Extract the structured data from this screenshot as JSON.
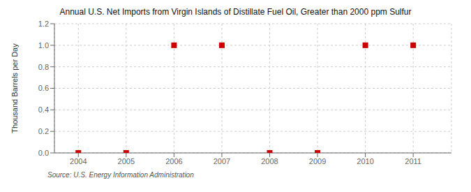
{
  "chart_data": {
    "type": "scatter",
    "title": "Annual U.S. Net Imports from Virgin Islands of Distillate Fuel Oil, Greater than 2000 ppm Sulfur",
    "ylabel": "Thousand Barrels per Day",
    "source": "Source: U.S. Energy Information Administration",
    "x": [
      2004,
      2005,
      2006,
      2007,
      2008,
      2009,
      2010,
      2011
    ],
    "values": [
      0,
      0,
      1,
      1,
      0,
      0,
      1,
      1
    ],
    "color": "#cc0000",
    "marker": "square",
    "xlim": [
      2003.5,
      2011.8
    ],
    "ylim": [
      0,
      1.2
    ],
    "xticks": [
      2004,
      2005,
      2006,
      2007,
      2008,
      2009,
      2010,
      2011
    ],
    "yticks": [
      {
        "value": 0,
        "label": "0.0"
      },
      0.2,
      0.4,
      0.6,
      0.8,
      {
        "value": 1,
        "label": "1.0"
      },
      1.2
    ],
    "grid": true
  }
}
